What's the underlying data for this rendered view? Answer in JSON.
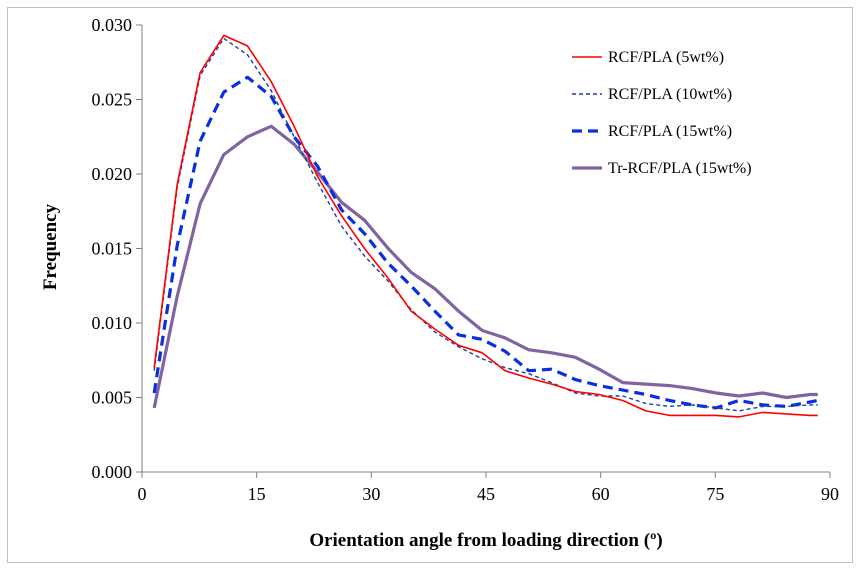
{
  "chart_data": {
    "type": "line",
    "xlabel": "Orientation angle from loading direction (º)",
    "ylabel": "Frequency",
    "xlim": [
      0,
      90
    ],
    "ylim": [
      0,
      0.03
    ],
    "xticks": [
      "0",
      "15",
      "30",
      "45",
      "60",
      "75",
      "90"
    ],
    "yticks": [
      "0.000",
      "0.005",
      "0.010",
      "0.015",
      "0.020",
      "0.025",
      "0.030"
    ],
    "grid": false,
    "legend_position": "top-right",
    "x": [
      1.6,
      4.6,
      7.6,
      10.7,
      13.8,
      16.9,
      19.9,
      23.0,
      26.1,
      29.1,
      32.2,
      35.2,
      38.3,
      41.4,
      44.5,
      47.5,
      50.6,
      53.6,
      56.7,
      59.8,
      62.9,
      65.9,
      69.0,
      72.0,
      75.1,
      78.1,
      81.2,
      84.3,
      87.4,
      88.4
    ],
    "series": [
      {
        "name": "RCF/PLA (5wt%)",
        "color": "#ff0000",
        "style": "solid-thin",
        "values": [
          0.007,
          0.0193,
          0.0268,
          0.0293,
          0.0286,
          0.0262,
          0.0232,
          0.0198,
          0.0172,
          0.015,
          0.013,
          0.0108,
          0.0096,
          0.0085,
          0.008,
          0.0068,
          0.0063,
          0.0059,
          0.0054,
          0.0052,
          0.0048,
          0.0041,
          0.0038,
          0.0038,
          0.0038,
          0.0037,
          0.004,
          0.0039,
          0.0038,
          0.0038
        ]
      },
      {
        "name": "RCF/PLA (10wt%)",
        "color": "#1f3f9f",
        "style": "dashed-thin",
        "values": [
          0.0068,
          0.0191,
          0.0266,
          0.0291,
          0.028,
          0.0256,
          0.0225,
          0.0194,
          0.0165,
          0.0145,
          0.0128,
          0.0109,
          0.0094,
          0.0084,
          0.0076,
          0.007,
          0.0066,
          0.006,
          0.0053,
          0.0051,
          0.0051,
          0.0046,
          0.0044,
          0.0045,
          0.0043,
          0.0041,
          0.0044,
          0.0044,
          0.0045,
          0.0045
        ]
      },
      {
        "name": "RCF/PLA (15wt%)",
        "color": "#0a2fe0",
        "style": "dashed-thick",
        "values": [
          0.0053,
          0.0152,
          0.0222,
          0.0255,
          0.0265,
          0.0252,
          0.0225,
          0.0205,
          0.0176,
          0.016,
          0.014,
          0.0125,
          0.0108,
          0.0092,
          0.0089,
          0.0081,
          0.0068,
          0.0069,
          0.0062,
          0.0058,
          0.0055,
          0.0052,
          0.0048,
          0.0045,
          0.0043,
          0.0048,
          0.0045,
          0.0044,
          0.0047,
          0.0048
        ]
      },
      {
        "name": "Tr-RCF/PLA (15wt%)",
        "color": "#8064a2",
        "style": "solid-thick",
        "values": [
          0.0043,
          0.0118,
          0.018,
          0.0213,
          0.0225,
          0.0232,
          0.022,
          0.0201,
          0.0181,
          0.0169,
          0.015,
          0.0134,
          0.0123,
          0.0108,
          0.0095,
          0.009,
          0.0082,
          0.008,
          0.0077,
          0.0069,
          0.006,
          0.0059,
          0.0058,
          0.0056,
          0.0053,
          0.0051,
          0.0053,
          0.005,
          0.0052,
          0.0052
        ]
      }
    ]
  }
}
